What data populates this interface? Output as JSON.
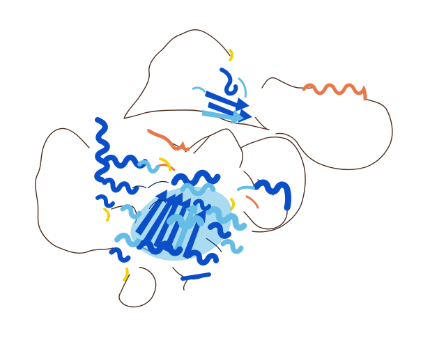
{
  "image": {
    "subject": "protein-structure-cartoon",
    "colors": {
      "background": "#ffffff",
      "very_high_confidence": "#0b4fc8",
      "confident": "#65bde6",
      "low_confidence": "#f5d10c",
      "very_low_confidence": "#e8784a",
      "loop_coil": "#4a2d1f"
    }
  }
}
